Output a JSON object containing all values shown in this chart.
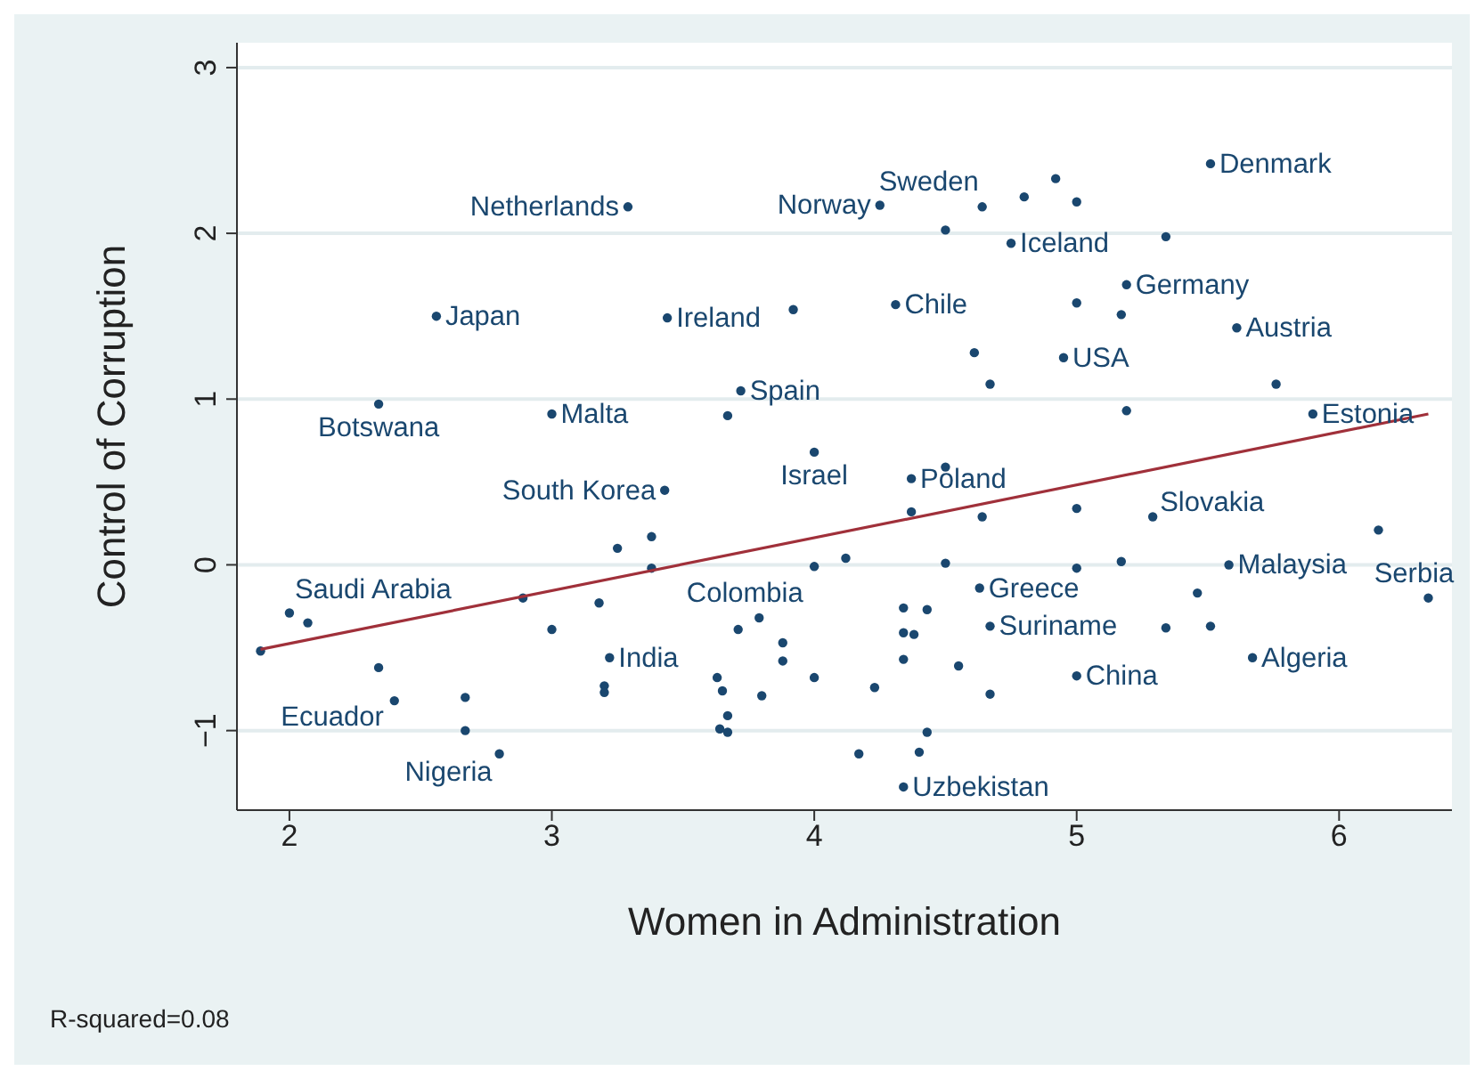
{
  "chart_data": {
    "type": "scatter",
    "xlabel": "Women in Administration",
    "ylabel": "Control of Corruption",
    "xlim": [
      1.8,
      6.43
    ],
    "ylim": [
      -1.48,
      3.15
    ],
    "xticks": [
      2,
      3,
      4,
      5,
      6
    ],
    "yticks": [
      {
        "value": -1,
        "label": "−1"
      },
      0,
      1,
      2,
      3
    ],
    "grid": "y",
    "marker": "circle",
    "series": [
      {
        "color": "#1a476f",
        "x": [
          1.89,
          2.0,
          2.07,
          2.34,
          2.34,
          2.4,
          2.56,
          2.67,
          2.67,
          2.8,
          2.89,
          3.0,
          3.0,
          3.18,
          3.22,
          3.2,
          3.2,
          3.25,
          3.29,
          3.38,
          3.38,
          3.43,
          3.44,
          3.63,
          3.65,
          3.64,
          3.67,
          3.67,
          3.67,
          3.71,
          3.72,
          3.79,
          3.8,
          3.88,
          3.88,
          3.92,
          4.0,
          4.0,
          4.0,
          4.12,
          4.17,
          4.23,
          4.25,
          4.31,
          4.34,
          4.34,
          4.34,
          4.34,
          4.37,
          4.37,
          4.38,
          4.4,
          4.43,
          4.43,
          4.5,
          4.5,
          4.5,
          4.55,
          4.61,
          4.63,
          4.64,
          4.64,
          4.67,
          4.67,
          4.67,
          4.75,
          4.8,
          4.92,
          4.95,
          5.0,
          5.0,
          5.0,
          5.0,
          5.0,
          5.17,
          5.17,
          5.19,
          5.19,
          5.29,
          5.34,
          5.34,
          5.46,
          5.51,
          5.51,
          5.58,
          5.61,
          5.67,
          5.76,
          5.9,
          6.15,
          6.34
        ],
        "values": [
          -0.52,
          -0.29,
          -0.35,
          -0.62,
          0.97,
          -0.82,
          1.5,
          -0.8,
          -1.0,
          -1.14,
          -0.2,
          0.91,
          -0.39,
          -0.23,
          -0.56,
          -0.73,
          -0.77,
          0.1,
          2.16,
          0.17,
          -0.02,
          0.45,
          1.49,
          -0.68,
          -0.76,
          -0.99,
          -0.91,
          -1.01,
          0.9,
          -0.39,
          1.05,
          -0.32,
          -0.79,
          -0.47,
          -0.58,
          1.54,
          -0.01,
          0.68,
          -0.68,
          0.04,
          -1.14,
          -0.74,
          2.17,
          1.57,
          -0.26,
          -0.41,
          -0.57,
          -1.34,
          0.52,
          0.32,
          -0.42,
          -1.13,
          -0.27,
          -1.01,
          2.02,
          0.59,
          0.01,
          -0.61,
          1.28,
          -0.14,
          2.16,
          0.29,
          1.09,
          -0.37,
          -0.78,
          1.94,
          2.22,
          2.33,
          1.25,
          2.19,
          1.58,
          0.34,
          -0.02,
          -0.67,
          1.51,
          0.02,
          1.69,
          0.93,
          0.29,
          1.98,
          -0.38,
          -0.17,
          2.42,
          -0.37,
          0.0,
          1.43,
          -0.56,
          1.09,
          0.91,
          0.21,
          -0.2
        ]
      },
      {
        "type": "line",
        "color": "#a0303a",
        "marker": "none",
        "x": [
          1.89,
          6.34
        ],
        "values": [
          -0.51,
          0.91
        ]
      }
    ],
    "annotations": [
      {
        "text": "Netherlands",
        "x": 3.29,
        "y": 2.16
      },
      {
        "text": "Norway",
        "x": 4.25,
        "y": 2.17
      },
      {
        "text": "Sweden",
        "x": 4.64,
        "y": 2.16
      },
      {
        "text": "Denmark",
        "x": 5.51,
        "y": 2.42
      },
      {
        "text": "Iceland",
        "x": 4.75,
        "y": 1.94
      },
      {
        "text": "Japan",
        "x": 2.56,
        "y": 1.5
      },
      {
        "text": "Ireland",
        "x": 3.44,
        "y": 1.49
      },
      {
        "text": "Chile",
        "x": 4.31,
        "y": 1.57
      },
      {
        "text": "Germany",
        "x": 5.19,
        "y": 1.69
      },
      {
        "text": "Austria",
        "x": 5.61,
        "y": 1.43
      },
      {
        "text": "USA",
        "x": 4.95,
        "y": 1.25
      },
      {
        "text": "Spain",
        "x": 3.72,
        "y": 1.05
      },
      {
        "text": "Botswana",
        "x": 2.34,
        "y": 0.97
      },
      {
        "text": "Malta",
        "x": 3.0,
        "y": 0.91
      },
      {
        "text": "Estonia",
        "x": 5.9,
        "y": 0.91
      },
      {
        "text": "Israel",
        "x": 4.0,
        "y": 0.68
      },
      {
        "text": "South Korea",
        "x": 3.43,
        "y": 0.45
      },
      {
        "text": "Poland",
        "x": 4.37,
        "y": 0.52
      },
      {
        "text": "Slovakia",
        "x": 5.29,
        "y": 0.29
      },
      {
        "text": "Malaysia",
        "x": 5.58,
        "y": 0.0
      },
      {
        "text": "Serbia",
        "x": 6.34,
        "y": -0.2
      },
      {
        "text": "Saudi Arabia",
        "x": 2.0,
        "y": -0.29
      },
      {
        "text": "Colombia",
        "x": 3.79,
        "y": -0.32
      },
      {
        "text": "India",
        "x": 3.22,
        "y": -0.56
      },
      {
        "text": "Greece",
        "x": 4.63,
        "y": -0.14
      },
      {
        "text": "Suriname",
        "x": 4.67,
        "y": -0.37
      },
      {
        "text": "China",
        "x": 5.0,
        "y": -0.67
      },
      {
        "text": "Algeria",
        "x": 5.67,
        "y": -0.56
      },
      {
        "text": "Ecuador",
        "x": 2.4,
        "y": -0.82
      },
      {
        "text": "Nigeria",
        "x": 2.8,
        "y": -1.14
      },
      {
        "text": "Uzbekistan",
        "x": 4.34,
        "y": -1.34
      },
      "R-squared=0.08"
    ]
  }
}
